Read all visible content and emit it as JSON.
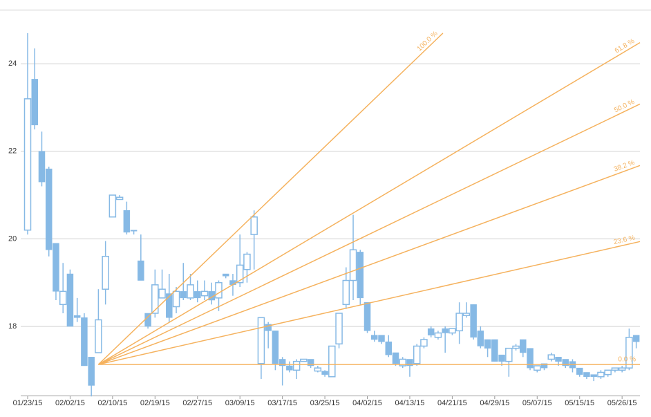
{
  "chart_data": {
    "type": "candlestick",
    "categories": [
      "01/23/15",
      null,
      null,
      null,
      null,
      null,
      "02/02/15",
      null,
      null,
      null,
      null,
      null,
      "02/10/15",
      null,
      null,
      null,
      null,
      null,
      "02/19/15",
      null,
      null,
      null,
      null,
      null,
      "02/27/15",
      null,
      null,
      null,
      null,
      null,
      "03/09/15",
      null,
      null,
      null,
      null,
      null,
      "03/17/15",
      null,
      null,
      null,
      null,
      null,
      "03/25/15",
      null,
      null,
      null,
      null,
      null,
      "04/02/15",
      null,
      null,
      null,
      null,
      null,
      "04/13/15",
      null,
      null,
      null,
      null,
      null,
      "04/21/15",
      null,
      null,
      null,
      null,
      null,
      "04/29/15",
      null,
      null,
      null,
      null,
      null,
      "05/07/15",
      null,
      null,
      null,
      null,
      null,
      "05/15/15",
      null,
      null,
      null,
      null,
      null,
      "05/26/15",
      null,
      null
    ],
    "open": [
      20.2,
      23.65,
      22.0,
      21.6,
      19.9,
      18.5,
      19.2,
      18.25,
      18.2,
      17.3,
      17.4,
      18.85,
      20.5,
      20.9,
      20.65,
      20.2,
      19.5,
      18.3,
      18.3,
      18.65,
      18.75,
      18.45,
      18.8,
      18.65,
      18.8,
      18.7,
      18.8,
      18.65,
      19.2,
      19.05,
      19.0,
      19.3,
      20.1,
      17.15,
      18.05,
      17.9,
      17.25,
      17.1,
      17.0,
      17.2,
      17.25,
      16.98,
      16.98,
      16.85,
      17.6,
      18.5,
      19.05,
      19.7,
      18.55,
      17.8,
      17.8,
      17.65,
      17.4,
      17.1,
      17.25,
      17.15,
      17.55,
      17.95,
      17.75,
      17.95,
      17.85,
      17.9,
      18.25,
      18.5,
      17.9,
      17.7,
      17.7,
      17.35,
      17.2,
      17.5,
      17.7,
      17.5,
      17.0,
      17.15,
      17.25,
      17.3,
      17.25,
      17.2,
      17.05,
      16.95,
      16.9,
      16.85,
      16.9,
      17.0,
      17.0,
      17.05,
      17.8
    ],
    "high": [
      24.7,
      24.35,
      22.45,
      21.65,
      19.9,
      19.45,
      19.3,
      18.65,
      18.3,
      17.3,
      18.85,
      19.95,
      21.0,
      21.0,
      20.85,
      20.2,
      20.1,
      18.3,
      19.3,
      19.3,
      19.2,
      18.9,
      19.45,
      19.2,
      19.05,
      19.05,
      19.0,
      19.05,
      19.2,
      19.2,
      20.1,
      19.7,
      20.65,
      18.2,
      18.1,
      17.9,
      17.3,
      17.2,
      17.25,
      17.25,
      17.25,
      17.1,
      17.0,
      17.55,
      18.3,
      19.35,
      20.55,
      19.75,
      18.55,
      17.9,
      17.8,
      17.8,
      17.4,
      17.3,
      17.25,
      17.6,
      17.75,
      18.0,
      17.9,
      18.0,
      17.95,
      18.55,
      18.55,
      18.5,
      18.0,
      17.7,
      17.7,
      17.35,
      17.5,
      17.6,
      17.7,
      17.5,
      17.1,
      17.15,
      17.4,
      17.3,
      17.25,
      17.25,
      17.05,
      16.95,
      16.9,
      17.0,
      17.0,
      17.05,
      17.1,
      17.95,
      17.8
    ],
    "low": [
      20.1,
      22.5,
      21.2,
      19.6,
      18.6,
      18.3,
      18.0,
      18.1,
      17.1,
      16.4,
      17.4,
      18.5,
      20.5,
      20.9,
      20.1,
      20.1,
      19.05,
      17.95,
      18.2,
      18.65,
      18.1,
      18.3,
      18.6,
      18.6,
      18.55,
      18.6,
      18.5,
      18.35,
      19.1,
      18.7,
      18.9,
      19.0,
      19.3,
      16.8,
      17.5,
      17.0,
      16.65,
      16.95,
      16.8,
      17.2,
      17.05,
      16.95,
      16.85,
      16.85,
      17.5,
      18.4,
      18.6,
      18.5,
      17.85,
      17.65,
      17.6,
      17.3,
      17.1,
      17.05,
      16.85,
      17.1,
      17.5,
      17.75,
      17.7,
      17.4,
      17.8,
      17.6,
      18.2,
      17.7,
      17.5,
      17.3,
      17.2,
      17.1,
      16.85,
      17.45,
      17.3,
      17.0,
      16.95,
      17.0,
      17.2,
      17.1,
      17.05,
      16.95,
      16.85,
      16.8,
      16.75,
      16.8,
      16.85,
      16.95,
      16.95,
      17.0,
      17.5
    ],
    "close": [
      23.2,
      22.6,
      21.3,
      19.75,
      18.8,
      18.8,
      18.0,
      18.2,
      17.1,
      16.65,
      18.15,
      19.6,
      21.0,
      20.95,
      20.15,
      20.18,
      19.05,
      18.0,
      18.95,
      18.85,
      18.2,
      18.8,
      18.65,
      18.95,
      18.65,
      18.8,
      18.6,
      19.0,
      19.15,
      18.95,
      19.4,
      19.65,
      20.5,
      18.2,
      17.9,
      17.15,
      17.1,
      17.0,
      17.2,
      17.25,
      17.1,
      17.05,
      16.9,
      17.55,
      18.3,
      19.05,
      19.75,
      18.65,
      17.9,
      17.7,
      17.65,
      17.35,
      17.15,
      17.25,
      17.1,
      17.55,
      17.7,
      17.8,
      17.85,
      17.85,
      17.95,
      18.3,
      18.3,
      17.75,
      17.55,
      17.5,
      17.2,
      17.2,
      17.5,
      17.55,
      17.4,
      17.05,
      17.1,
      17.05,
      17.35,
      17.2,
      17.1,
      17.05,
      16.9,
      16.85,
      16.85,
      16.95,
      17.0,
      17.05,
      17.05,
      17.75,
      17.65
    ],
    "color": "#86b9e5",
    "ylim": [
      16.42,
      25.22
    ],
    "yticks": [
      18,
      20,
      22,
      24
    ],
    "grid": true,
    "fan": {
      "start_index": 10,
      "start_value": 17.13,
      "end_index": 30,
      "end_value": 20.24,
      "color": "#f5b25e",
      "levels": [
        {
          "value": 0,
          "label": "0.0 %"
        },
        {
          "value": 23.6,
          "label": "23.6 %"
        },
        {
          "value": 38.2,
          "label": "38.2 %"
        },
        {
          "value": 50,
          "label": "50.0 %"
        },
        {
          "value": 61.8,
          "label": "61.8 %"
        },
        {
          "value": 100,
          "label": "100.0 %"
        }
      ]
    }
  }
}
